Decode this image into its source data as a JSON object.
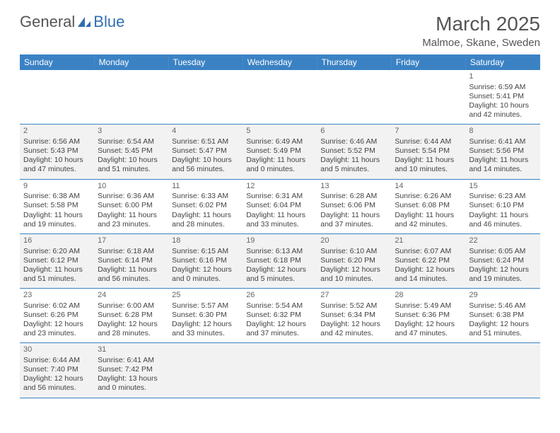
{
  "header": {
    "logo_text_1": "General",
    "logo_text_2": "Blue",
    "month_title": "March 2025",
    "location": "Malmoe, Skane, Sweden"
  },
  "colors": {
    "header_bg": "#3b82c4",
    "header_fg": "#ffffff",
    "shaded_row": "#f2f2f2",
    "border": "#3b82c4",
    "logo_blue": "#2f6fb0"
  },
  "day_headers": [
    "Sunday",
    "Monday",
    "Tuesday",
    "Wednesday",
    "Thursday",
    "Friday",
    "Saturday"
  ],
  "weeks": [
    {
      "shaded": false,
      "days": [
        null,
        null,
        null,
        null,
        null,
        null,
        {
          "n": "1",
          "sunrise": "Sunrise: 6:59 AM",
          "sunset": "Sunset: 5:41 PM",
          "daylight": "Daylight: 10 hours and 42 minutes."
        }
      ]
    },
    {
      "shaded": true,
      "days": [
        {
          "n": "2",
          "sunrise": "Sunrise: 6:56 AM",
          "sunset": "Sunset: 5:43 PM",
          "daylight": "Daylight: 10 hours and 47 minutes."
        },
        {
          "n": "3",
          "sunrise": "Sunrise: 6:54 AM",
          "sunset": "Sunset: 5:45 PM",
          "daylight": "Daylight: 10 hours and 51 minutes."
        },
        {
          "n": "4",
          "sunrise": "Sunrise: 6:51 AM",
          "sunset": "Sunset: 5:47 PM",
          "daylight": "Daylight: 10 hours and 56 minutes."
        },
        {
          "n": "5",
          "sunrise": "Sunrise: 6:49 AM",
          "sunset": "Sunset: 5:49 PM",
          "daylight": "Daylight: 11 hours and 0 minutes."
        },
        {
          "n": "6",
          "sunrise": "Sunrise: 6:46 AM",
          "sunset": "Sunset: 5:52 PM",
          "daylight": "Daylight: 11 hours and 5 minutes."
        },
        {
          "n": "7",
          "sunrise": "Sunrise: 6:44 AM",
          "sunset": "Sunset: 5:54 PM",
          "daylight": "Daylight: 11 hours and 10 minutes."
        },
        {
          "n": "8",
          "sunrise": "Sunrise: 6:41 AM",
          "sunset": "Sunset: 5:56 PM",
          "daylight": "Daylight: 11 hours and 14 minutes."
        }
      ]
    },
    {
      "shaded": false,
      "days": [
        {
          "n": "9",
          "sunrise": "Sunrise: 6:38 AM",
          "sunset": "Sunset: 5:58 PM",
          "daylight": "Daylight: 11 hours and 19 minutes."
        },
        {
          "n": "10",
          "sunrise": "Sunrise: 6:36 AM",
          "sunset": "Sunset: 6:00 PM",
          "daylight": "Daylight: 11 hours and 23 minutes."
        },
        {
          "n": "11",
          "sunrise": "Sunrise: 6:33 AM",
          "sunset": "Sunset: 6:02 PM",
          "daylight": "Daylight: 11 hours and 28 minutes."
        },
        {
          "n": "12",
          "sunrise": "Sunrise: 6:31 AM",
          "sunset": "Sunset: 6:04 PM",
          "daylight": "Daylight: 11 hours and 33 minutes."
        },
        {
          "n": "13",
          "sunrise": "Sunrise: 6:28 AM",
          "sunset": "Sunset: 6:06 PM",
          "daylight": "Daylight: 11 hours and 37 minutes."
        },
        {
          "n": "14",
          "sunrise": "Sunrise: 6:26 AM",
          "sunset": "Sunset: 6:08 PM",
          "daylight": "Daylight: 11 hours and 42 minutes."
        },
        {
          "n": "15",
          "sunrise": "Sunrise: 6:23 AM",
          "sunset": "Sunset: 6:10 PM",
          "daylight": "Daylight: 11 hours and 46 minutes."
        }
      ]
    },
    {
      "shaded": true,
      "days": [
        {
          "n": "16",
          "sunrise": "Sunrise: 6:20 AM",
          "sunset": "Sunset: 6:12 PM",
          "daylight": "Daylight: 11 hours and 51 minutes."
        },
        {
          "n": "17",
          "sunrise": "Sunrise: 6:18 AM",
          "sunset": "Sunset: 6:14 PM",
          "daylight": "Daylight: 11 hours and 56 minutes."
        },
        {
          "n": "18",
          "sunrise": "Sunrise: 6:15 AM",
          "sunset": "Sunset: 6:16 PM",
          "daylight": "Daylight: 12 hours and 0 minutes."
        },
        {
          "n": "19",
          "sunrise": "Sunrise: 6:13 AM",
          "sunset": "Sunset: 6:18 PM",
          "daylight": "Daylight: 12 hours and 5 minutes."
        },
        {
          "n": "20",
          "sunrise": "Sunrise: 6:10 AM",
          "sunset": "Sunset: 6:20 PM",
          "daylight": "Daylight: 12 hours and 10 minutes."
        },
        {
          "n": "21",
          "sunrise": "Sunrise: 6:07 AM",
          "sunset": "Sunset: 6:22 PM",
          "daylight": "Daylight: 12 hours and 14 minutes."
        },
        {
          "n": "22",
          "sunrise": "Sunrise: 6:05 AM",
          "sunset": "Sunset: 6:24 PM",
          "daylight": "Daylight: 12 hours and 19 minutes."
        }
      ]
    },
    {
      "shaded": false,
      "days": [
        {
          "n": "23",
          "sunrise": "Sunrise: 6:02 AM",
          "sunset": "Sunset: 6:26 PM",
          "daylight": "Daylight: 12 hours and 23 minutes."
        },
        {
          "n": "24",
          "sunrise": "Sunrise: 6:00 AM",
          "sunset": "Sunset: 6:28 PM",
          "daylight": "Daylight: 12 hours and 28 minutes."
        },
        {
          "n": "25",
          "sunrise": "Sunrise: 5:57 AM",
          "sunset": "Sunset: 6:30 PM",
          "daylight": "Daylight: 12 hours and 33 minutes."
        },
        {
          "n": "26",
          "sunrise": "Sunrise: 5:54 AM",
          "sunset": "Sunset: 6:32 PM",
          "daylight": "Daylight: 12 hours and 37 minutes."
        },
        {
          "n": "27",
          "sunrise": "Sunrise: 5:52 AM",
          "sunset": "Sunset: 6:34 PM",
          "daylight": "Daylight: 12 hours and 42 minutes."
        },
        {
          "n": "28",
          "sunrise": "Sunrise: 5:49 AM",
          "sunset": "Sunset: 6:36 PM",
          "daylight": "Daylight: 12 hours and 47 minutes."
        },
        {
          "n": "29",
          "sunrise": "Sunrise: 5:46 AM",
          "sunset": "Sunset: 6:38 PM",
          "daylight": "Daylight: 12 hours and 51 minutes."
        }
      ]
    },
    {
      "shaded": true,
      "days": [
        {
          "n": "30",
          "sunrise": "Sunrise: 6:44 AM",
          "sunset": "Sunset: 7:40 PM",
          "daylight": "Daylight: 12 hours and 56 minutes."
        },
        {
          "n": "31",
          "sunrise": "Sunrise: 6:41 AM",
          "sunset": "Sunset: 7:42 PM",
          "daylight": "Daylight: 13 hours and 0 minutes."
        },
        null,
        null,
        null,
        null,
        null
      ]
    }
  ]
}
